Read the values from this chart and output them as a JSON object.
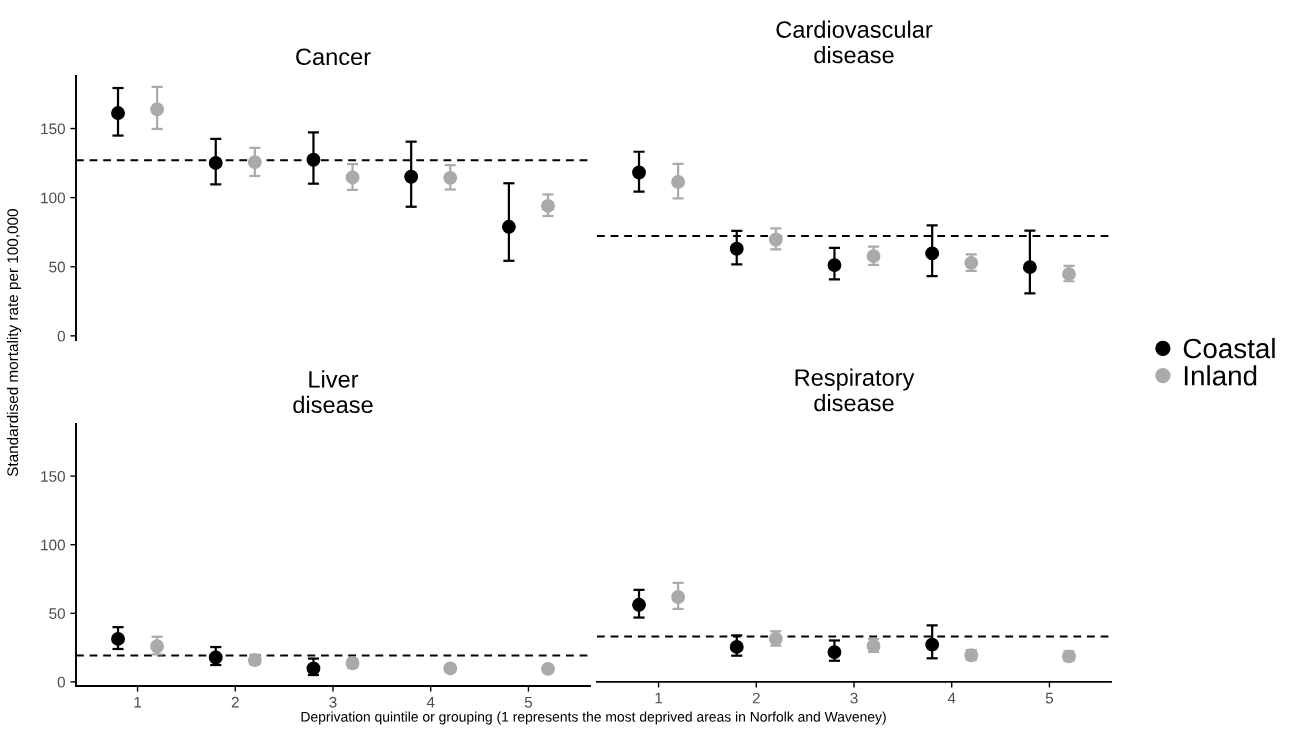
{
  "chart_data": [
    {
      "type": "scatter",
      "title": "Cancer",
      "ylabel": "Standardised mortality rate per 100,000",
      "xlim": [
        0.37,
        5.63
      ],
      "ylim": [
        -3,
        188
      ],
      "xticks": [
        1,
        2,
        3,
        4,
        5
      ],
      "yticks": [
        0,
        50,
        100,
        150
      ],
      "tick_labels": "y",
      "grid": false,
      "marker": "circle",
      "legend": "right",
      "series": [
        {
          "name": "Coastal",
          "color": "#000000",
          "x": [
            0.8,
            1.8,
            2.8,
            3.8,
            4.8
          ],
          "values": [
            161.2,
            125.1,
            127.4,
            115.1,
            78.9
          ],
          "errors": [
            [
              144.9,
              179.3
            ],
            [
              109.6,
              142.5
            ],
            [
              110.1,
              147.2
            ],
            [
              93.4,
              140.5
            ],
            [
              54.3,
              110.4
            ]
          ]
        },
        {
          "name": "Inland",
          "color": "#aaaaaa",
          "x": [
            1.2,
            2.2,
            3.2,
            4.2,
            5.2
          ],
          "values": [
            163.9,
            125.7,
            114.6,
            114.3,
            94.0
          ],
          "errors": [
            [
              149.7,
              180.1
            ],
            [
              115.7,
              136.0
            ],
            [
              105.6,
              124.3
            ],
            [
              105.9,
              123.5
            ],
            [
              86.7,
              102.3
            ]
          ]
        }
      ],
      "ref_lines": [
        {
          "axis": "y",
          "value": 127.1,
          "color": "#000000",
          "line_style": "dashed"
        }
      ]
    },
    {
      "type": "scatter",
      "title": "Cardiovascular\ndisease",
      "xlim": [
        0.37,
        5.63
      ],
      "ylim": [
        0,
        150
      ],
      "xticks": [
        1,
        2,
        3,
        4,
        5
      ],
      "yticks": [
        0,
        50,
        100,
        150
      ],
      "tick_labels": false,
      "grid": false,
      "marker": "circle",
      "series": [
        {
          "color": "#000000",
          "x": [
            0.8,
            1.8,
            2.8,
            3.8,
            4.8
          ],
          "values": [
            118.2,
            63.0,
            51.2,
            59.7,
            49.7
          ],
          "errors": [
            [
              104.4,
              133.2
            ],
            [
              51.7,
              75.9
            ],
            [
              40.9,
              63.7
            ],
            [
              43.2,
              79.9
            ],
            [
              30.7,
              76.2
            ]
          ]
        },
        {
          "color": "#aaaaaa",
          "x": [
            1.2,
            2.2,
            3.2,
            4.2,
            5.2
          ],
          "values": [
            111.4,
            69.7,
            57.7,
            52.8,
            44.7
          ],
          "errors": [
            [
              99.4,
              124.4
            ],
            [
              62.5,
              77.7
            ],
            [
              51.4,
              64.5
            ],
            [
              47.0,
              59.0
            ],
            [
              39.5,
              50.7
            ]
          ]
        }
      ],
      "ref_lines": [
        {
          "axis": "y",
          "value": 72.2,
          "color": "#000000",
          "line_style": "dashed"
        }
      ]
    },
    {
      "type": "scatter",
      "title": "Liver\ndisease",
      "xlabel": "Deprivation quintile or grouping (1 represents the most deprived areas in Norfolk and Waveney)",
      "xlim": [
        0.37,
        5.63
      ],
      "ylim": [
        -3,
        188
      ],
      "xticks": [
        1,
        2,
        3,
        4,
        5
      ],
      "yticks": [
        0,
        50,
        100,
        150
      ],
      "grid": false,
      "marker": "circle",
      "series": [
        {
          "color": "#000000",
          "x": [
            0.8,
            1.8,
            2.8,
            null,
            null
          ],
          "values": [
            31.3,
            17.8,
            9.8,
            null,
            null
          ],
          "errors": [
            [
              24.0,
              39.9
            ],
            [
              12.3,
              25.4
            ],
            [
              5.0,
              17.0
            ],
            null,
            null
          ]
        },
        {
          "color": "#aaaaaa",
          "x": [
            1.2,
            2.2,
            3.2,
            4.2,
            5.2
          ],
          "values": [
            26.0,
            15.9,
            13.6,
            9.8,
            9.5
          ],
          "errors": [
            [
              20.1,
              32.9
            ],
            [
              12.8,
              19.8
            ],
            [
              10.6,
              16.8
            ],
            [
              7.3,
              12.3
            ],
            [
              7.0,
              12.0
            ]
          ]
        }
      ],
      "ref_lines": [
        {
          "axis": "y",
          "value": 19.2,
          "color": "#000000",
          "line_style": "dashed"
        }
      ]
    },
    {
      "type": "scatter",
      "title": "Respiratory\ndisease",
      "xlim": [
        0.37,
        5.63
      ],
      "ylim": [
        0,
        150
      ],
      "xticks": [
        1,
        2,
        3,
        4,
        5
      ],
      "yticks": [
        0,
        50,
        100,
        150
      ],
      "tick_labels": "x",
      "grid": false,
      "marker": "circle",
      "series": [
        {
          "color": "#000000",
          "x": [
            0.8,
            1.8,
            2.8,
            3.8,
            null
          ],
          "values": [
            56.2,
            25.5,
            21.7,
            27.2,
            null
          ],
          "errors": [
            [
              46.9,
              67.1
            ],
            [
              19.1,
              33.9
            ],
            [
              15.4,
              30.2
            ],
            [
              17.2,
              41.2
            ],
            null
          ]
        },
        {
          "color": "#aaaaaa",
          "x": [
            1.2,
            2.2,
            3.2,
            4.2,
            5.2
          ],
          "values": [
            61.9,
            31.4,
            26.2,
            19.4,
            18.6
          ],
          "errors": [
            [
              53.2,
              72.2
            ],
            [
              26.4,
              36.9
            ],
            [
              21.9,
              31.2
            ],
            [
              16.0,
              23.2
            ],
            [
              15.4,
              22.2
            ]
          ]
        }
      ],
      "ref_lines": [
        {
          "axis": "y",
          "value": 33.1,
          "color": "#000000",
          "line_style": "dashed"
        }
      ]
    }
  ]
}
